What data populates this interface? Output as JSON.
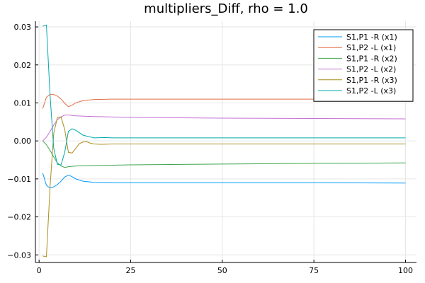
{
  "chart_data": {
    "type": "line",
    "title": "multipliers_Diff, rho = 1.0",
    "xlabel": "",
    "ylabel": "",
    "xlim": [
      -1.0,
      103.0
    ],
    "ylim": [
      -0.032,
      0.0315
    ],
    "x_ticks": [
      0,
      25,
      50,
      75,
      100
    ],
    "x_tick_labels": [
      "0",
      "25",
      "50",
      "75",
      "100"
    ],
    "y_ticks": [
      -0.03,
      -0.02,
      -0.01,
      0.0,
      0.01,
      0.02,
      0.03
    ],
    "y_tick_labels": [
      "−0.03",
      "−0.02",
      "−0.01",
      "0.00",
      "0.01",
      "0.02",
      "0.03"
    ],
    "grid": true,
    "legend_position": "top-right",
    "series": [
      {
        "name": "S1,P1 -R (x1)",
        "color": "#009af9",
        "points": [
          [
            1,
            -0.0085
          ],
          [
            2,
            -0.0117
          ],
          [
            3,
            -0.0124
          ],
          [
            4,
            -0.0121
          ],
          [
            5,
            -0.0115
          ],
          [
            6,
            -0.0106
          ],
          [
            7,
            -0.0095
          ],
          [
            8,
            -0.009
          ],
          [
            9,
            -0.0094
          ],
          [
            10,
            -0.01
          ],
          [
            12,
            -0.0106
          ],
          [
            15,
            -0.0109
          ],
          [
            20,
            -0.011
          ],
          [
            30,
            -0.011
          ],
          [
            50,
            -0.011
          ],
          [
            75,
            -0.011
          ],
          [
            100,
            -0.0111
          ]
        ]
      },
      {
        "name": "S1,P2 -L (x1)",
        "color": "#e26f46",
        "points": [
          [
            1,
            0.0085
          ],
          [
            2,
            0.0115
          ],
          [
            3,
            0.0122
          ],
          [
            4,
            0.0122
          ],
          [
            5,
            0.0118
          ],
          [
            6,
            0.011
          ],
          [
            7,
            0.0099
          ],
          [
            8,
            0.009
          ],
          [
            9,
            0.0094
          ],
          [
            10,
            0.01
          ],
          [
            12,
            0.0106
          ],
          [
            15,
            0.0109
          ],
          [
            20,
            0.011
          ],
          [
            30,
            0.011
          ],
          [
            50,
            0.011
          ],
          [
            75,
            0.011
          ],
          [
            100,
            0.0111
          ]
        ]
      },
      {
        "name": "S1,P1 -R (x2)",
        "color": "#3da44d",
        "points": [
          [
            1,
            0.0
          ],
          [
            2,
            -0.001
          ],
          [
            3,
            -0.0025
          ],
          [
            4,
            -0.0042
          ],
          [
            5,
            -0.0058
          ],
          [
            6,
            -0.0066
          ],
          [
            7,
            -0.007
          ],
          [
            8,
            -0.0068
          ],
          [
            10,
            -0.0066
          ],
          [
            15,
            -0.0065
          ],
          [
            25,
            -0.0063
          ],
          [
            50,
            -0.0061
          ],
          [
            75,
            -0.0059
          ],
          [
            100,
            -0.0058
          ]
        ]
      },
      {
        "name": "S1,P2 -L (x2)",
        "color": "#c271d2",
        "points": [
          [
            1,
            0.0
          ],
          [
            2,
            0.001
          ],
          [
            3,
            0.0025
          ],
          [
            4,
            0.0042
          ],
          [
            5,
            0.0056
          ],
          [
            6,
            0.0063
          ],
          [
            7,
            0.0068
          ],
          [
            8,
            0.0068
          ],
          [
            10,
            0.0066
          ],
          [
            15,
            0.0064
          ],
          [
            25,
            0.0062
          ],
          [
            50,
            0.006
          ],
          [
            75,
            0.0059
          ],
          [
            100,
            0.0058
          ]
        ]
      },
      {
        "name": "S1,P1 -R (x3)",
        "color": "#ac8d18",
        "points": [
          [
            1,
            -0.0303
          ],
          [
            2,
            -0.0305
          ],
          [
            3,
            -0.012
          ],
          [
            4,
            0.002
          ],
          [
            5,
            0.0062
          ],
          [
            6,
            0.0063
          ],
          [
            7,
            0.003
          ],
          [
            8,
            -0.003
          ],
          [
            9,
            -0.0032
          ],
          [
            10,
            -0.002
          ],
          [
            11,
            -0.0007
          ],
          [
            12,
            -0.0003
          ],
          [
            13,
            -0.0002
          ],
          [
            14,
            -0.0006
          ],
          [
            15,
            -0.0008
          ],
          [
            17,
            -0.0009
          ],
          [
            20,
            -0.0008
          ],
          [
            30,
            -0.0008
          ],
          [
            50,
            -0.0008
          ],
          [
            100,
            -0.0008
          ]
        ]
      },
      {
        "name": "S1,P2 -L (x3)",
        "color": "#00a9ad",
        "points": [
          [
            1,
            0.0302
          ],
          [
            2,
            0.0305
          ],
          [
            3,
            0.012
          ],
          [
            4,
            -0.002
          ],
          [
            5,
            -0.0062
          ],
          [
            6,
            -0.0063
          ],
          [
            7,
            -0.003
          ],
          [
            8,
            0.0025
          ],
          [
            9,
            0.0032
          ],
          [
            10,
            0.0028
          ],
          [
            12,
            0.0015
          ],
          [
            15,
            0.0008
          ],
          [
            18,
            0.0009
          ],
          [
            20,
            0.0008
          ],
          [
            30,
            0.0008
          ],
          [
            50,
            0.0008
          ],
          [
            100,
            0.0008
          ]
        ]
      }
    ]
  }
}
